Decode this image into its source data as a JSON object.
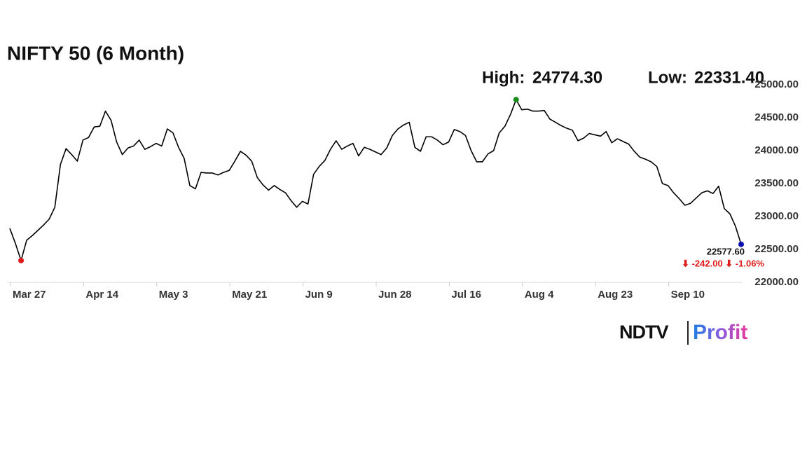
{
  "chart_data": {
    "type": "line",
    "title": "NIFTY 50 (6 Month)",
    "annotations": {
      "high_label": "High:",
      "high_value": "24774.30",
      "low_label": "Low:",
      "low_value": "22331.40",
      "last_value": "22577.60",
      "change": "⬇ -242.00 ⬇ -1.06%"
    },
    "categories": [
      "Mar 27",
      null,
      null,
      null,
      null,
      null,
      null,
      null,
      null,
      null,
      null,
      null,
      null,
      "Apr 14",
      null,
      null,
      null,
      null,
      null,
      null,
      null,
      null,
      null,
      null,
      null,
      null,
      "May 3",
      null,
      null,
      null,
      null,
      null,
      null,
      null,
      null,
      null,
      null,
      null,
      null,
      "May 21",
      null,
      null,
      null,
      null,
      null,
      null,
      null,
      null,
      null,
      null,
      null,
      null,
      "Jun 9",
      null,
      null,
      null,
      null,
      null,
      null,
      null,
      null,
      null,
      null,
      null,
      null,
      "Jun 28",
      null,
      null,
      null,
      null,
      null,
      null,
      null,
      null,
      null,
      null,
      null,
      null,
      "Jul 16",
      null,
      null,
      null,
      null,
      null,
      null,
      null,
      null,
      null,
      null,
      null,
      null,
      "Aug 4",
      null,
      null,
      null,
      null,
      null,
      null,
      null,
      null,
      null,
      null,
      null,
      null,
      "Aug 23",
      null,
      null,
      null,
      null,
      null,
      null,
      null,
      null,
      null,
      null,
      null,
      null,
      "Sep 10",
      null,
      null,
      null,
      null,
      null,
      null,
      null,
      null,
      null,
      null,
      null,
      null,
      null
    ],
    "series": [
      {
        "name": "NIFTY 50",
        "color": "#000000",
        "values": [
          22820,
          22590,
          22331.4,
          22640,
          22710,
          22790,
          22870,
          22960,
          23140,
          23790,
          24030,
          23940,
          23840,
          24160,
          24200,
          24360,
          24370,
          24600,
          24460,
          24130,
          23940,
          24040,
          24070,
          24160,
          24020,
          24060,
          24110,
          24070,
          24330,
          24270,
          24050,
          23880,
          23470,
          23420,
          23670,
          23660,
          23660,
          23630,
          23670,
          23700,
          23840,
          23990,
          23930,
          23840,
          23590,
          23480,
          23400,
          23470,
          23410,
          23360,
          23240,
          23140,
          23230,
          23190,
          23640,
          23760,
          23850,
          24020,
          24150,
          24020,
          24070,
          24110,
          23920,
          24050,
          24020,
          23980,
          23940,
          24040,
          24230,
          24330,
          24390,
          24430,
          24050,
          23990,
          24210,
          24210,
          24160,
          24090,
          24130,
          24320,
          24290,
          24230,
          24000,
          23830,
          23830,
          23950,
          24000,
          24270,
          24370,
          24550,
          24774.3,
          24620,
          24630,
          24600,
          24600,
          24610,
          24480,
          24430,
          24380,
          24340,
          24310,
          24150,
          24190,
          24260,
          24240,
          24220,
          24290,
          24120,
          24180,
          24140,
          24100,
          23990,
          23900,
          23870,
          23830,
          23760,
          23500,
          23470,
          23360,
          23270,
          23170,
          23200,
          23280,
          23360,
          23390,
          23350,
          23460,
          23120,
          23040,
          22850,
          22577.6
        ]
      }
    ],
    "ylim": [
      22000,
      25000
    ],
    "yticks": [
      {
        "value": 22000,
        "label": "22000.00"
      },
      {
        "value": 22500,
        "label": "22500.00"
      },
      {
        "value": 23000,
        "label": "23000.00"
      },
      {
        "value": 23500,
        "label": "23500.00"
      },
      {
        "value": 24000,
        "label": "24000.00"
      },
      {
        "value": 24500,
        "label": "24500.00"
      },
      {
        "value": 25000,
        "label": "25000.00"
      }
    ],
    "high_color": "#1a8c1a",
    "low_color": "#e01b1b",
    "last_color": "#1010b0",
    "change_color": "#e01b1b",
    "grid": false
  },
  "logo": {
    "brand": "NDTV",
    "product": "Profit"
  }
}
